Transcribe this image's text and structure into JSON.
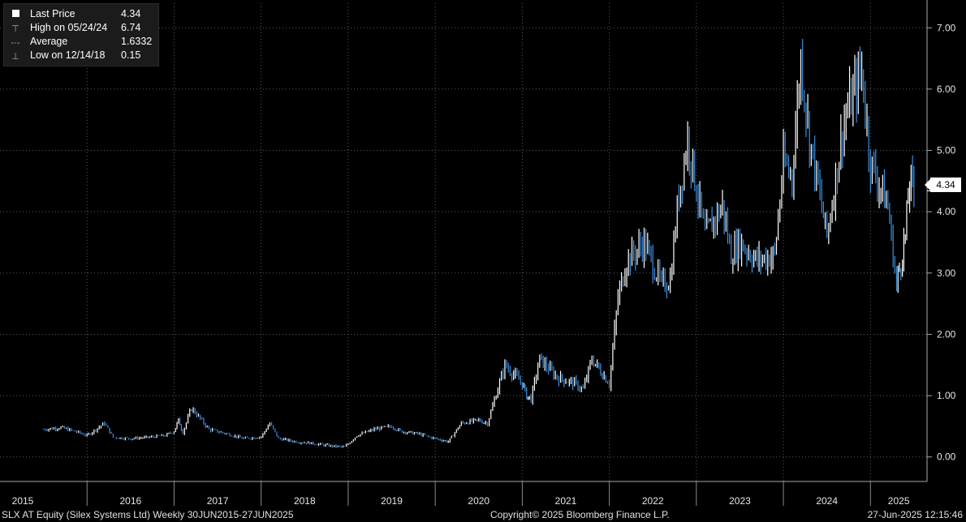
{
  "legend": {
    "last_price_label": "Last Price",
    "last_price_value": "4.34",
    "high_label": "High on 05/24/24",
    "high_value": "6.74",
    "average_label": "Average",
    "average_value": "1.6332",
    "low_label": "Low on 12/14/18",
    "low_value": "0.15"
  },
  "last_price_badge": "4.34",
  "footer": {
    "left": "SLX AT Equity (Silex Systems Ltd)  Weekly 30JUN2015-27JUN2025",
    "center": "Copyright© 2025 Bloomberg Finance L.P.",
    "right": "27-Jun-2025 12:15:46"
  },
  "colors": {
    "background": "#000000",
    "up_bar": "#ffffff",
    "down_bar": "#3a8fe0",
    "grid": "#5a5a5a",
    "axis_text": "#e6e6e6"
  },
  "chart_data": {
    "type": "line",
    "title": "",
    "xlabel": "",
    "ylabel": "",
    "ylim": [
      -0.4,
      7.4
    ],
    "y_ticks": [
      "0.00",
      "1.00",
      "2.00",
      "3.00",
      "4.00",
      "5.00",
      "6.00",
      "7.00"
    ],
    "x_tick_labels": [
      "2015",
      "2016",
      "2017",
      "2018",
      "2019",
      "2020",
      "2021",
      "2022",
      "2023",
      "2024",
      "2025"
    ],
    "grid": true,
    "legend_position": "top-left",
    "series": [
      {
        "name": "Last Price",
        "x": [
          2015.5,
          2015.7,
          2015.9,
          2016.0,
          2016.2,
          2016.3,
          2016.5,
          2016.7,
          2016.9,
          2017.0,
          2017.05,
          2017.1,
          2017.2,
          2017.4,
          2017.6,
          2017.8,
          2018.0,
          2018.1,
          2018.2,
          2018.4,
          2018.6,
          2018.8,
          2018.96,
          2019.1,
          2019.3,
          2019.5,
          2019.6,
          2019.8,
          2020.0,
          2020.15,
          2020.3,
          2020.5,
          2020.6,
          2020.8,
          2021.0,
          2021.05,
          2021.1,
          2021.2,
          2021.4,
          2021.6,
          2021.7,
          2021.8,
          2022.0,
          2022.1,
          2022.2,
          2022.4,
          2022.6,
          2022.7,
          2022.8,
          2022.9,
          2023.1,
          2023.3,
          2023.4,
          2023.5,
          2023.7,
          2023.9,
          2024.0,
          2024.1,
          2024.2,
          2024.3,
          2024.4,
          2024.5,
          2024.7,
          2024.9,
          2025.0,
          2025.2,
          2025.3,
          2025.35,
          2025.4,
          2025.45,
          2025.5
        ],
        "y": [
          0.45,
          0.48,
          0.4,
          0.35,
          0.55,
          0.32,
          0.3,
          0.32,
          0.35,
          0.42,
          0.6,
          0.4,
          0.8,
          0.45,
          0.38,
          0.3,
          0.33,
          0.55,
          0.3,
          0.25,
          0.22,
          0.18,
          0.16,
          0.35,
          0.45,
          0.5,
          0.42,
          0.38,
          0.3,
          0.25,
          0.55,
          0.6,
          0.55,
          1.5,
          1.2,
          1.0,
          0.95,
          1.6,
          1.3,
          1.2,
          1.1,
          1.6,
          1.2,
          2.6,
          3.2,
          3.5,
          2.8,
          2.9,
          4.3,
          5.2,
          3.6,
          4.1,
          3.3,
          3.5,
          3.2,
          3.3,
          4.8,
          4.6,
          6.5,
          5.2,
          4.4,
          3.6,
          5.5,
          6.3,
          4.8,
          4.1,
          2.8,
          3.2,
          3.6,
          4.5,
          4.34
        ]
      }
    ]
  }
}
